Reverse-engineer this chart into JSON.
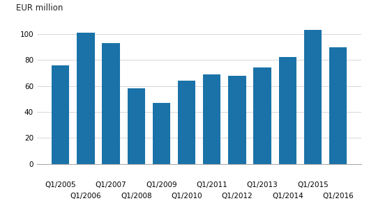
{
  "categories": [
    "Q1/2005",
    "Q1/2006",
    "Q1/2007",
    "Q1/2008",
    "Q1/2009",
    "Q1/2010",
    "Q1/2011",
    "Q1/2012",
    "Q1/2013",
    "Q1/2014",
    "Q1/2015",
    "Q1/2016"
  ],
  "values": [
    76,
    101,
    93,
    58,
    47,
    64,
    69,
    68,
    74,
    82,
    103,
    90
  ],
  "bar_color": "#1a72a8",
  "ylabel": "EUR million",
  "ylim": [
    0,
    110
  ],
  "yticks": [
    0,
    20,
    40,
    60,
    80,
    100
  ],
  "figsize": [
    5.29,
    3.02
  ],
  "dpi": 100,
  "background_color": "#ffffff",
  "grid_color": "#d0d0d0",
  "ylabel_fontsize": 8.5,
  "tick_fontsize": 7.5
}
